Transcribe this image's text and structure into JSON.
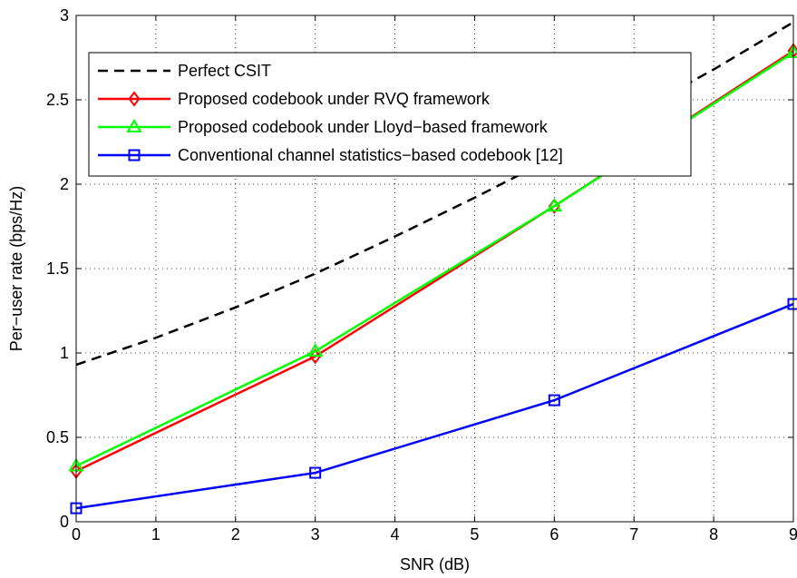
{
  "chart_data": {
    "type": "line",
    "title": "",
    "xlabel": "SNR (dB)",
    "ylabel": "Per−user rate (bps/Hz)",
    "xlim": [
      0,
      9
    ],
    "ylim": [
      0,
      3
    ],
    "xticks": [
      0,
      1,
      2,
      3,
      4,
      5,
      6,
      7,
      8,
      9
    ],
    "yticks": [
      0,
      0.5,
      1,
      1.5,
      2,
      2.5,
      3
    ],
    "grid": true,
    "legend_position": "top-left",
    "series": [
      {
        "name": "Perfect CSIT",
        "color": "#000000",
        "style": "dashed",
        "marker": "none",
        "x": [
          0,
          1,
          2,
          3,
          4,
          5,
          6,
          7,
          8,
          9
        ],
        "y": [
          0.93,
          1.09,
          1.27,
          1.47,
          1.69,
          1.92,
          2.16,
          2.42,
          2.68,
          2.96
        ]
      },
      {
        "name": "Proposed codebook under RVQ framework",
        "color": "#ff0000",
        "style": "solid",
        "marker": "diamond",
        "x": [
          0,
          3,
          6,
          9
        ],
        "y": [
          0.3,
          0.98,
          1.87,
          2.79
        ]
      },
      {
        "name": "Proposed codebook under Lloyd−based framework",
        "color": "#00ff00",
        "style": "solid",
        "marker": "triangle",
        "x": [
          0,
          3,
          6,
          9
        ],
        "y": [
          0.33,
          1.01,
          1.87,
          2.78
        ]
      },
      {
        "name": "Conventional channel statistics−based codebook [12]",
        "color": "#0000ff",
        "style": "solid",
        "marker": "square",
        "x": [
          0,
          3,
          6,
          9
        ],
        "y": [
          0.08,
          0.29,
          0.72,
          1.29
        ]
      }
    ]
  }
}
